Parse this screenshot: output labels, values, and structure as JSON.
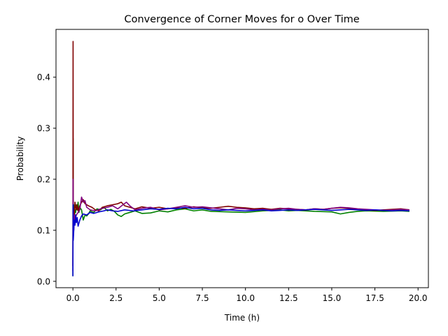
{
  "chart_data": {
    "type": "line",
    "title": "Convergence of Corner Moves for o Over Time",
    "xlabel": "Time (h)",
    "ylabel": "Probability",
    "xlim": [
      -0.98,
      20.6
    ],
    "ylim": [
      -0.0125,
      0.4935
    ],
    "xticks": [
      0.0,
      2.5,
      5.0,
      7.5,
      10.0,
      12.5,
      15.0,
      17.5,
      20.0
    ],
    "xtick_labels": [
      "0.0",
      "2.5",
      "5.0",
      "7.5",
      "10.0",
      "12.5",
      "15.0",
      "17.5",
      "20.0"
    ],
    "yticks": [
      0.0,
      0.1,
      0.2,
      0.3,
      0.4
    ],
    "ytick_labels": [
      "0.0",
      "0.1",
      "0.2",
      "0.3",
      "0.4"
    ],
    "grid": false,
    "legend": false,
    "series": [
      {
        "color": "#008000",
        "x": [
          0,
          0.01,
          0.02,
          0.05,
          0.08,
          0.12,
          0.16,
          0.2,
          0.25,
          0.3,
          0.35,
          0.4,
          0.5,
          0.6,
          0.7,
          0.8,
          0.9,
          1.0,
          1.2,
          1.4,
          1.6,
          1.8,
          2.0,
          2.2,
          2.4,
          2.6,
          2.8,
          3.0,
          3.3,
          3.6,
          4.0,
          4.5,
          5.0,
          5.5,
          6.0,
          6.5,
          7.0,
          7.5,
          8.0,
          9.0,
          10.0,
          11.0,
          12.0,
          12.5,
          13.0,
          14.0,
          15.0,
          15.5,
          16.0,
          16.5,
          17.0,
          18.0,
          19.0,
          19.5
        ],
        "y": [
          0.01,
          0.28,
          0.1,
          0.15,
          0.12,
          0.14,
          0.135,
          0.15,
          0.14,
          0.155,
          0.135,
          0.145,
          0.14,
          0.12,
          0.13,
          0.128,
          0.132,
          0.138,
          0.135,
          0.142,
          0.14,
          0.145,
          0.138,
          0.141,
          0.137,
          0.13,
          0.127,
          0.132,
          0.135,
          0.138,
          0.133,
          0.134,
          0.138,
          0.136,
          0.14,
          0.142,
          0.138,
          0.14,
          0.137,
          0.136,
          0.135,
          0.138,
          0.14,
          0.138,
          0.139,
          0.137,
          0.136,
          0.132,
          0.135,
          0.137,
          0.138,
          0.137,
          0.138,
          0.137
        ]
      },
      {
        "color": "#800000",
        "x": [
          0,
          0.01,
          0.02,
          0.05,
          0.08,
          0.12,
          0.16,
          0.2,
          0.25,
          0.3,
          0.4,
          0.5,
          0.6,
          0.7,
          0.9,
          1.1,
          1.3,
          1.5,
          1.7,
          2.0,
          2.3,
          2.6,
          2.8,
          3.0,
          3.3,
          3.6,
          4.0,
          4.5,
          5.0,
          5.5,
          6.0,
          6.5,
          7.0,
          7.5,
          8.0,
          8.5,
          9.0,
          9.5,
          10.0,
          10.5,
          11.0,
          11.5,
          12.0,
          12.5,
          13.0,
          13.5,
          14.0,
          14.5,
          15.0,
          15.5,
          16.0,
          16.5,
          17.0,
          17.5,
          18.0,
          18.5,
          19.0,
          19.5
        ],
        "y": [
          0.03,
          0.47,
          0.14,
          0.11,
          0.13,
          0.155,
          0.145,
          0.14,
          0.15,
          0.138,
          0.148,
          0.155,
          0.16,
          0.152,
          0.148,
          0.145,
          0.14,
          0.138,
          0.145,
          0.148,
          0.15,
          0.152,
          0.155,
          0.148,
          0.145,
          0.142,
          0.146,
          0.143,
          0.145,
          0.142,
          0.144,
          0.143,
          0.146,
          0.144,
          0.143,
          0.145,
          0.147,
          0.145,
          0.144,
          0.142,
          0.143,
          0.141,
          0.143,
          0.142,
          0.141,
          0.14,
          0.142,
          0.141,
          0.143,
          0.144,
          0.143,
          0.141,
          0.14,
          0.139,
          0.14,
          0.141,
          0.142,
          0.14
        ]
      },
      {
        "color": "#800080",
        "x": [
          0,
          0.01,
          0.02,
          0.05,
          0.08,
          0.12,
          0.16,
          0.2,
          0.3,
          0.4,
          0.5,
          0.6,
          0.7,
          0.8,
          1.0,
          1.3,
          1.6,
          2.0,
          2.3,
          2.6,
          2.9,
          3.1,
          3.3,
          3.6,
          4.0,
          4.5,
          5.0,
          5.5,
          6.0,
          6.5,
          7.0,
          7.5,
          8.0,
          8.5,
          9.0,
          9.5,
          10.0,
          10.5,
          11.0,
          11.5,
          12.0,
          12.5,
          13.0,
          13.5,
          14.0,
          14.5,
          15.0,
          15.5,
          16.0,
          16.5,
          17.0,
          17.5,
          18.0,
          18.5,
          19.0,
          19.5
        ],
        "y": [
          0.02,
          0.2,
          0.12,
          0.1,
          0.13,
          0.12,
          0.125,
          0.13,
          0.135,
          0.14,
          0.165,
          0.155,
          0.158,
          0.145,
          0.14,
          0.138,
          0.142,
          0.145,
          0.148,
          0.142,
          0.15,
          0.155,
          0.148,
          0.14,
          0.143,
          0.145,
          0.14,
          0.142,
          0.145,
          0.148,
          0.145,
          0.146,
          0.144,
          0.142,
          0.14,
          0.143,
          0.142,
          0.14,
          0.141,
          0.14,
          0.142,
          0.143,
          0.141,
          0.14,
          0.142,
          0.141,
          0.143,
          0.145,
          0.144,
          0.142,
          0.141,
          0.14,
          0.139,
          0.14,
          0.141,
          0.14
        ]
      },
      {
        "color": "#0000CD",
        "x": [
          0,
          0.01,
          0.02,
          0.05,
          0.08,
          0.12,
          0.16,
          0.2,
          0.25,
          0.3,
          0.4,
          0.5,
          0.6,
          0.8,
          1.0,
          1.2,
          1.5,
          1.8,
          2.0,
          2.3,
          2.6,
          3.0,
          3.5,
          4.0,
          4.5,
          5.0,
          5.5,
          6.0,
          6.5,
          7.0,
          7.5,
          8.0,
          8.5,
          9.0,
          9.5,
          10.0,
          10.5,
          11.0,
          11.5,
          12.0,
          12.5,
          13.0,
          13.5,
          14.0,
          14.5,
          15.0,
          15.5,
          16.0,
          16.5,
          17.0,
          17.5,
          18.0,
          18.5,
          19.0,
          19.5
        ],
        "y": [
          0.01,
          0.15,
          0.08,
          0.1,
          0.12,
          0.11,
          0.13,
          0.115,
          0.125,
          0.108,
          0.12,
          0.128,
          0.132,
          0.13,
          0.135,
          0.133,
          0.136,
          0.138,
          0.14,
          0.138,
          0.137,
          0.14,
          0.138,
          0.14,
          0.142,
          0.141,
          0.143,
          0.142,
          0.145,
          0.142,
          0.143,
          0.14,
          0.139,
          0.14,
          0.139,
          0.138,
          0.139,
          0.14,
          0.138,
          0.139,
          0.14,
          0.139,
          0.14,
          0.141,
          0.14,
          0.139,
          0.14,
          0.141,
          0.14,
          0.139,
          0.14,
          0.139,
          0.138,
          0.139,
          0.138
        ]
      }
    ]
  }
}
